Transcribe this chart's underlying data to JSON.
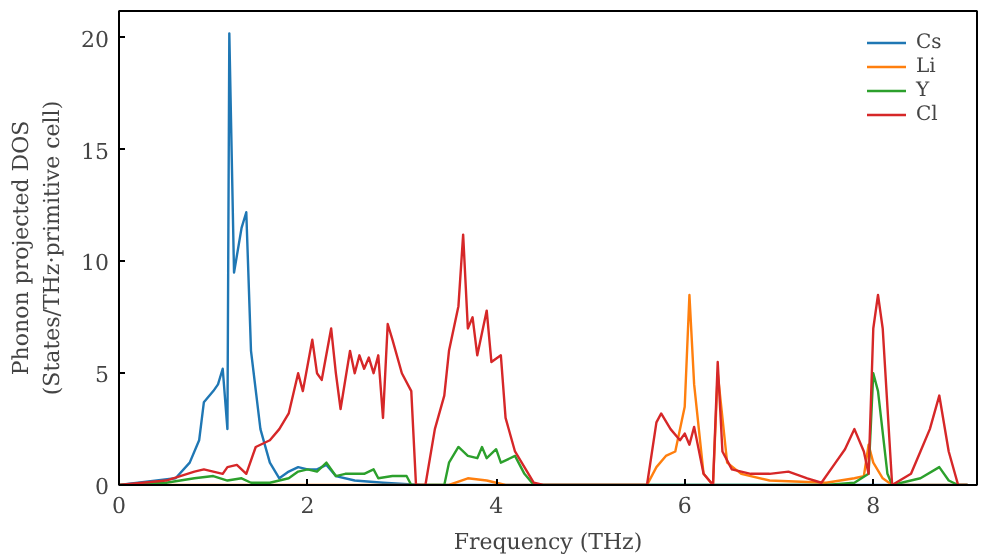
{
  "chart_data": {
    "type": "line",
    "xlabel": "Frequency (THz)",
    "ylabel": "Phonon projected DOS\n(States/THz·primitive cell)",
    "xlim": [
      0,
      9.1
    ],
    "ylim": [
      0,
      21.2
    ],
    "xticks": [
      0,
      2,
      4,
      6,
      8
    ],
    "yticks": [
      0,
      5,
      10,
      15,
      20
    ],
    "grid": false,
    "legend": "top right",
    "series": [
      {
        "name": "Cs",
        "color": "#1f77b4",
        "x": [
          0,
          0.6,
          0.75,
          0.85,
          0.9,
          1.0,
          1.05,
          1.1,
          1.15,
          1.17,
          1.22,
          1.3,
          1.35,
          1.4,
          1.5,
          1.6,
          1.7,
          1.8,
          1.9,
          2.0,
          2.1,
          2.2,
          2.3,
          2.5,
          2.8,
          3.2,
          9.0
        ],
        "values": [
          0,
          0.3,
          1,
          2,
          3.7,
          4.2,
          4.5,
          5.2,
          2.5,
          20.2,
          9.5,
          11.5,
          12.2,
          6,
          2.5,
          1,
          0.3,
          0.6,
          0.8,
          0.7,
          0.7,
          0.9,
          0.4,
          0.2,
          0.1,
          0,
          0
        ]
      },
      {
        "name": "Li",
        "color": "#ff7f0e",
        "x": [
          0,
          3.5,
          3.7,
          3.9,
          4.0,
          4.1,
          5.6,
          5.7,
          5.8,
          5.9,
          6.0,
          6.05,
          6.1,
          6.2,
          6.3,
          6.35,
          6.45,
          6.6,
          6.9,
          7.5,
          7.8,
          7.9,
          7.95,
          8.0,
          8.1,
          8.2,
          9.0
        ],
        "values": [
          0,
          0,
          0.3,
          0.2,
          0.1,
          0,
          0,
          0.8,
          1.3,
          1.5,
          3.5,
          8.5,
          4.5,
          0.5,
          0,
          5,
          1,
          0.5,
          0.2,
          0.1,
          0.3,
          0.4,
          1.8,
          1,
          0.3,
          0,
          0
        ]
      },
      {
        "name": "Y",
        "color": "#2ca02c",
        "x": [
          0,
          0.5,
          0.8,
          1.0,
          1.15,
          1.3,
          1.4,
          1.6,
          1.8,
          1.9,
          2.0,
          2.1,
          2.2,
          2.3,
          2.4,
          2.6,
          2.7,
          2.75,
          2.9,
          3.05,
          3.1,
          3.45,
          3.5,
          3.6,
          3.7,
          3.8,
          3.85,
          3.9,
          4.0,
          4.05,
          4.2,
          4.3,
          4.4,
          7.5,
          7.8,
          7.95,
          8.0,
          8.05,
          8.15,
          8.2,
          8.5,
          8.7,
          8.8,
          8.9,
          9.0
        ],
        "values": [
          0,
          0.1,
          0.3,
          0.4,
          0.2,
          0.3,
          0.1,
          0.1,
          0.3,
          0.6,
          0.7,
          0.6,
          1.0,
          0.4,
          0.5,
          0.5,
          0.7,
          0.3,
          0.4,
          0.4,
          0,
          0,
          1,
          1.7,
          1.3,
          1.2,
          1.7,
          1.2,
          1.6,
          1.0,
          1.3,
          0.5,
          0,
          0,
          0.1,
          0.5,
          5.0,
          4.2,
          0.5,
          0,
          0.3,
          0.8,
          0.2,
          0,
          0
        ]
      },
      {
        "name": "Cl",
        "color": "#d62728",
        "x": [
          0,
          0.5,
          0.8,
          0.9,
          1.1,
          1.15,
          1.25,
          1.35,
          1.45,
          1.6,
          1.7,
          1.8,
          1.9,
          1.95,
          2.05,
          2.1,
          2.15,
          2.25,
          2.3,
          2.35,
          2.45,
          2.5,
          2.55,
          2.6,
          2.65,
          2.7,
          2.75,
          2.8,
          2.85,
          2.9,
          3.0,
          3.1,
          3.15,
          3.25,
          3.35,
          3.45,
          3.5,
          3.6,
          3.65,
          3.7,
          3.75,
          3.8,
          3.9,
          3.95,
          4.05,
          4.1,
          4.2,
          4.3,
          4.4,
          4.5,
          5.6,
          5.7,
          5.75,
          5.85,
          5.95,
          6.0,
          6.05,
          6.1,
          6.2,
          6.3,
          6.35,
          6.4,
          6.5,
          6.7,
          6.9,
          7.1,
          7.3,
          7.45,
          7.6,
          7.7,
          7.8,
          7.9,
          7.95,
          8.0,
          8.05,
          8.1,
          8.2,
          8.4,
          8.5,
          8.6,
          8.7,
          8.8,
          8.9,
          9.0
        ],
        "values": [
          0,
          0.2,
          0.6,
          0.7,
          0.5,
          0.8,
          0.9,
          0.5,
          1.7,
          2.0,
          2.5,
          3.2,
          5.0,
          4.2,
          6.5,
          5,
          4.7,
          7,
          5,
          3.4,
          6,
          5,
          5.8,
          5.2,
          5.7,
          5,
          5.8,
          3,
          7.2,
          6.5,
          5.0,
          4.2,
          0,
          0,
          2.5,
          4,
          6,
          8,
          11.2,
          7,
          7.5,
          5.8,
          7.8,
          5.5,
          5.8,
          3,
          1.5,
          0.8,
          0.1,
          0,
          0,
          2.8,
          3.2,
          2.5,
          2.0,
          2.3,
          1.8,
          2.6,
          0.5,
          0,
          5.5,
          1.5,
          0.7,
          0.5,
          0.5,
          0.6,
          0.3,
          0.1,
          1,
          1.6,
          2.5,
          1.5,
          0.5,
          7,
          8.5,
          7,
          0,
          0.5,
          1.5,
          2.5,
          4,
          1.5,
          0,
          0
        ]
      }
    ]
  }
}
